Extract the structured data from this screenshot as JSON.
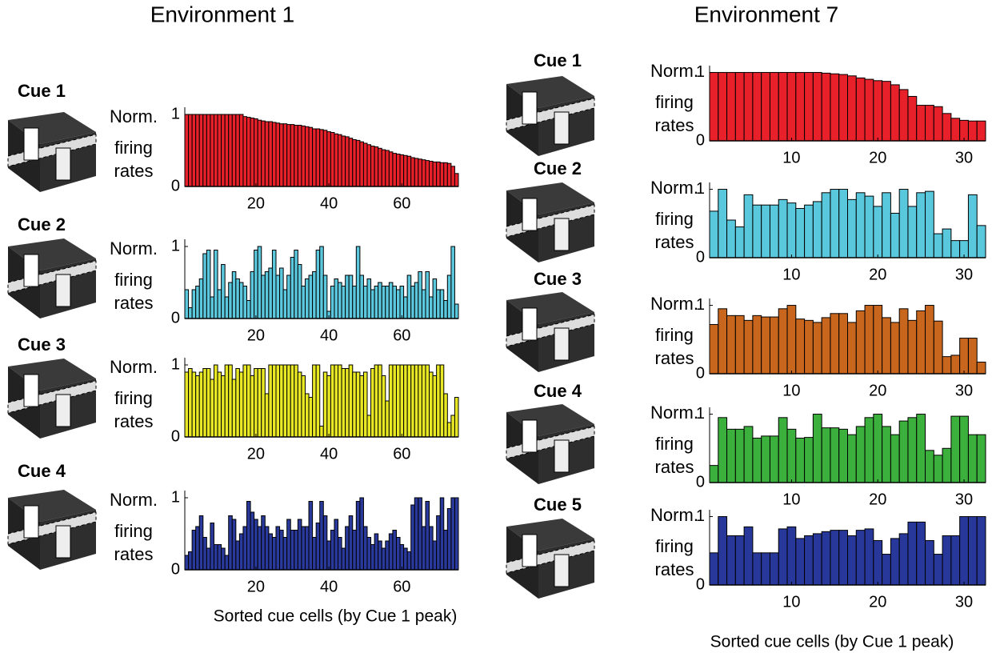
{
  "figure": {
    "environments": [
      {
        "title": "Environment 1",
        "xlabel": "Sorted cue cells (by Cue 1 peak)"
      },
      {
        "title": "Environment 7",
        "xlabel": "Sorted cue cells (by Cue 1 peak)"
      }
    ]
  },
  "chart_data": [
    {
      "type": "bar",
      "title": "Cue 1",
      "ylabel": [
        "Norm.",
        "firing",
        "rates"
      ],
      "color": "#e8202a",
      "x": [
        1,
        2,
        3,
        4,
        5,
        6,
        7,
        8,
        9,
        10,
        11,
        12,
        13,
        14,
        15,
        16,
        17,
        18,
        19,
        20,
        21,
        22,
        23,
        24,
        25,
        26,
        27,
        28,
        29,
        30,
        31,
        32,
        33,
        34,
        35,
        36,
        37,
        38,
        39,
        40,
        41,
        42,
        43,
        44,
        45,
        46,
        47,
        48,
        49,
        50,
        51,
        52,
        53,
        54,
        55,
        56,
        57,
        58,
        59,
        60,
        61,
        62,
        63,
        64,
        65,
        66,
        67,
        68,
        69,
        70,
        71,
        72,
        73,
        74,
        75
      ],
      "values": [
        1,
        1,
        1,
        1,
        1,
        1,
        1,
        1,
        1,
        1,
        1,
        1,
        1,
        1,
        1,
        1,
        0.97,
        0.96,
        0.95,
        0.94,
        0.92,
        0.91,
        0.9,
        0.9,
        0.89,
        0.88,
        0.87,
        0.87,
        0.86,
        0.86,
        0.85,
        0.85,
        0.84,
        0.83,
        0.82,
        0.8,
        0.8,
        0.79,
        0.78,
        0.76,
        0.75,
        0.73,
        0.72,
        0.7,
        0.69,
        0.67,
        0.65,
        0.64,
        0.62,
        0.6,
        0.58,
        0.56,
        0.55,
        0.53,
        0.51,
        0.5,
        0.48,
        0.46,
        0.45,
        0.44,
        0.43,
        0.42,
        0.4,
        0.39,
        0.38,
        0.37,
        0.36,
        0.35,
        0.34,
        0.34,
        0.33,
        0.33,
        0.32,
        0.28,
        0.18
      ],
      "xlim": [
        0.5,
        75.5
      ],
      "xticks": [
        20,
        40,
        60
      ],
      "ylim": [
        0,
        1.1
      ],
      "yticks": [
        0,
        1
      ]
    },
    {
      "type": "bar",
      "title": "Cue 2",
      "ylabel": [
        "Norm.",
        "firing",
        "rates"
      ],
      "color": "#5bc8de",
      "x": [
        1,
        2,
        3,
        4,
        5,
        6,
        7,
        8,
        9,
        10,
        11,
        12,
        13,
        14,
        15,
        16,
        17,
        18,
        19,
        20,
        21,
        22,
        23,
        24,
        25,
        26,
        27,
        28,
        29,
        30,
        31,
        32,
        33,
        34,
        35,
        36,
        37,
        38,
        39,
        40,
        41,
        42,
        43,
        44,
        45,
        46,
        47,
        48,
        49,
        50,
        51,
        52,
        53,
        54,
        55,
        56,
        57,
        58,
        59,
        60,
        61,
        62,
        63,
        64,
        65,
        66,
        67,
        68,
        69,
        70,
        71,
        72,
        73,
        74,
        75
      ],
      "values": [
        0.4,
        0.15,
        0.4,
        0.45,
        0.55,
        0.9,
        0.95,
        0.3,
        0.95,
        0.4,
        0.75,
        0.3,
        0.5,
        0.65,
        0.55,
        0.5,
        0.45,
        0.25,
        0.65,
        0.95,
        1.0,
        0.6,
        0.65,
        0.7,
        0.95,
        0.6,
        0.7,
        0.4,
        0.6,
        0.85,
        0.95,
        0.75,
        0.45,
        0.55,
        0.6,
        0.65,
        0.95,
        1.0,
        0.6,
        0.1,
        0.45,
        0.55,
        0.5,
        0.45,
        0.6,
        0.6,
        0.45,
        1.0,
        0.6,
        0.45,
        0.55,
        0.4,
        0.45,
        0.5,
        0.45,
        0.45,
        0.5,
        0.45,
        0.4,
        0.45,
        0.3,
        0.6,
        0.45,
        0.5,
        0.65,
        0.4,
        0.65,
        0.3,
        0.55,
        0.4,
        0.4,
        0.25,
        0.6,
        1.0,
        0.2
      ],
      "xlim": [
        0.5,
        75.5
      ],
      "xticks": [
        20,
        40,
        60
      ],
      "ylim": [
        0,
        1.1
      ],
      "yticks": [
        0,
        1
      ]
    },
    {
      "type": "bar",
      "title": "Cue 3",
      "ylabel": [
        "Norm.",
        "firing",
        "rates"
      ],
      "color": "#e8e824",
      "x": [
        1,
        2,
        3,
        4,
        5,
        6,
        7,
        8,
        9,
        10,
        11,
        12,
        13,
        14,
        15,
        16,
        17,
        18,
        19,
        20,
        21,
        22,
        23,
        24,
        25,
        26,
        27,
        28,
        29,
        30,
        31,
        32,
        33,
        34,
        35,
        36,
        37,
        38,
        39,
        40,
        41,
        42,
        43,
        44,
        45,
        46,
        47,
        48,
        49,
        50,
        51,
        52,
        53,
        54,
        55,
        56,
        57,
        58,
        59,
        60,
        61,
        62,
        63,
        64,
        65,
        66,
        67,
        68,
        69,
        70,
        71,
        72,
        73,
        74,
        75
      ],
      "values": [
        0.9,
        0.95,
        0.9,
        0.85,
        0.9,
        0.95,
        0.95,
        0.8,
        1.0,
        0.9,
        0.85,
        1.0,
        1.0,
        0.8,
        0.95,
        0.9,
        1.0,
        1.0,
        0.85,
        0.95,
        0.95,
        0.95,
        0.6,
        1.0,
        1.0,
        1.0,
        1.0,
        1.0,
        1.0,
        1.0,
        1.0,
        0.9,
        0.85,
        0.6,
        0.55,
        1.0,
        1.0,
        0.15,
        0.9,
        0.85,
        1.0,
        1.0,
        1.0,
        0.95,
        0.95,
        1.0,
        0.9,
        0.9,
        0.85,
        0.9,
        0.3,
        0.95,
        1.0,
        1.0,
        0.85,
        0.5,
        1.0,
        1.0,
        1.0,
        1.0,
        1.0,
        1.0,
        1.0,
        1.0,
        1.0,
        1.0,
        1.0,
        0.9,
        0.85,
        1.0,
        1.0,
        0.6,
        0.2,
        0.3,
        0.55
      ],
      "xlim": [
        0.5,
        75.5
      ],
      "xticks": [
        20,
        40,
        60
      ],
      "ylim": [
        0,
        1.1
      ],
      "yticks": [
        0,
        1
      ]
    },
    {
      "type": "bar",
      "title": "Cue 4",
      "ylabel": [
        "Norm.",
        "firing",
        "rates"
      ],
      "color": "#2a3a9c",
      "x": [
        1,
        2,
        3,
        4,
        5,
        6,
        7,
        8,
        9,
        10,
        11,
        12,
        13,
        14,
        15,
        16,
        17,
        18,
        19,
        20,
        21,
        22,
        23,
        24,
        25,
        26,
        27,
        28,
        29,
        30,
        31,
        32,
        33,
        34,
        35,
        36,
        37,
        38,
        39,
        40,
        41,
        42,
        43,
        44,
        45,
        46,
        47,
        48,
        49,
        50,
        51,
        52,
        53,
        54,
        55,
        56,
        57,
        58,
        59,
        60,
        61,
        62,
        63,
        64,
        65,
        66,
        67,
        68,
        69,
        70,
        71,
        72,
        73,
        74,
        75
      ],
      "values": [
        0.2,
        0.25,
        0.55,
        0.6,
        0.75,
        0.45,
        0.3,
        0.65,
        0.35,
        0.35,
        0.3,
        0.2,
        0.75,
        0.7,
        0.4,
        0.5,
        0.6,
        0.95,
        0.8,
        0.7,
        0.6,
        0.75,
        0.6,
        0.5,
        0.45,
        0.6,
        0.55,
        0.45,
        0.7,
        0.55,
        0.55,
        0.7,
        0.6,
        0.6,
        0.95,
        0.45,
        0.65,
        0.95,
        0.75,
        0.4,
        0.55,
        0.7,
        0.45,
        0.3,
        0.6,
        0.75,
        0.55,
        0.95,
        1.0,
        0.6,
        0.45,
        0.35,
        0.5,
        0.4,
        0.3,
        0.4,
        0.5,
        0.55,
        0.45,
        0.35,
        0.3,
        0.25,
        0.9,
        1.0,
        1.0,
        0.6,
        0.95,
        0.6,
        0.4,
        0.75,
        1.0,
        0.55,
        0.85,
        1.0,
        1.0
      ],
      "xlim": [
        0.5,
        75.5
      ],
      "xticks": [
        20,
        40,
        60
      ],
      "ylim": [
        0,
        1.1
      ],
      "yticks": [
        0,
        1
      ]
    },
    {
      "type": "bar",
      "title": "Cue 1",
      "ylabel": [
        "Norm.",
        "firing",
        "rates"
      ],
      "color": "#e8202a",
      "x": [
        1,
        2,
        3,
        4,
        5,
        6,
        7,
        8,
        9,
        10,
        11,
        12,
        13,
        14,
        15,
        16,
        17,
        18,
        19,
        20,
        21,
        22,
        23,
        24,
        25,
        26,
        27,
        28,
        29,
        30,
        31,
        32
      ],
      "values": [
        1,
        1,
        1,
        1,
        1,
        1,
        1,
        1,
        1,
        1,
        1,
        1,
        1,
        0.99,
        0.98,
        0.97,
        0.95,
        0.92,
        0.9,
        0.88,
        0.87,
        0.82,
        0.75,
        0.65,
        0.52,
        0.52,
        0.5,
        0.4,
        0.33,
        0.3,
        0.29,
        0.29
      ],
      "xlim": [
        0.5,
        32.5
      ],
      "xticks": [
        10,
        20,
        30
      ],
      "ylim": [
        0,
        1.1
      ],
      "yticks": [
        0,
        1
      ]
    },
    {
      "type": "bar",
      "title": "Cue 2",
      "ylabel": [
        "Norm.",
        "firing",
        "rates"
      ],
      "color": "#5ac8dc",
      "x": [
        1,
        2,
        3,
        4,
        5,
        6,
        7,
        8,
        9,
        10,
        11,
        12,
        13,
        14,
        15,
        16,
        17,
        18,
        19,
        20,
        21,
        22,
        23,
        24,
        25,
        26,
        27,
        28,
        29,
        30,
        31,
        32
      ],
      "values": [
        0.68,
        1.0,
        0.55,
        0.45,
        0.92,
        0.77,
        0.77,
        0.77,
        0.85,
        0.8,
        0.72,
        0.77,
        0.82,
        0.95,
        1.0,
        1.0,
        0.85,
        0.95,
        0.9,
        0.75,
        0.95,
        0.65,
        1.0,
        0.75,
        0.95,
        0.97,
        0.35,
        0.42,
        0.25,
        0.25,
        0.92,
        0.47
      ],
      "xlim": [
        0.5,
        32.5
      ],
      "xticks": [
        10,
        20,
        30
      ],
      "ylim": [
        0,
        1.1
      ],
      "yticks": [
        0,
        1
      ]
    },
    {
      "type": "bar",
      "title": "Cue 3",
      "ylabel": [
        "Norm.",
        "firing",
        "rates"
      ],
      "color": "#c8661e",
      "x": [
        1,
        2,
        3,
        4,
        5,
        6,
        7,
        8,
        9,
        10,
        11,
        12,
        13,
        14,
        15,
        16,
        17,
        18,
        19,
        20,
        21,
        22,
        23,
        24,
        25,
        26,
        27,
        28,
        29,
        30,
        31,
        32
      ],
      "values": [
        0.72,
        0.95,
        0.85,
        0.85,
        0.78,
        0.85,
        0.83,
        0.83,
        0.95,
        1.0,
        0.8,
        0.78,
        0.75,
        0.82,
        0.88,
        0.88,
        0.75,
        0.92,
        1.0,
        1.0,
        0.82,
        0.75,
        0.95,
        0.78,
        0.92,
        1.0,
        0.77,
        0.25,
        0.27,
        0.52,
        0.52,
        0.17
      ],
      "xlim": [
        0.5,
        32.5
      ],
      "xticks": [
        10,
        20,
        30
      ],
      "ylim": [
        0,
        1.1
      ],
      "yticks": [
        0,
        1
      ]
    },
    {
      "type": "bar",
      "title": "Cue 4",
      "ylabel": [
        "Norm.",
        "firing",
        "rates"
      ],
      "color": "#3cb03c",
      "x": [
        1,
        2,
        3,
        4,
        5,
        6,
        7,
        8,
        9,
        10,
        11,
        12,
        13,
        14,
        15,
        16,
        17,
        18,
        19,
        20,
        21,
        22,
        23,
        24,
        25,
        26,
        27,
        28,
        29,
        30,
        31,
        32
      ],
      "values": [
        0.25,
        0.95,
        0.78,
        0.78,
        0.82,
        0.65,
        0.68,
        0.68,
        0.95,
        0.78,
        0.65,
        0.66,
        1.0,
        0.8,
        0.8,
        0.78,
        0.7,
        0.82,
        0.95,
        1.0,
        0.82,
        0.7,
        0.9,
        0.95,
        1.0,
        0.47,
        0.4,
        0.5,
        0.97,
        0.97,
        0.7,
        0.7
      ],
      "xlim": [
        0.5,
        32.5
      ],
      "xticks": [
        10,
        20,
        30
      ],
      "ylim": [
        0,
        1.1
      ],
      "yticks": [
        0,
        1
      ]
    },
    {
      "type": "bar",
      "title": "Cue 5",
      "ylabel": [
        "Norm.",
        "firing",
        "rates"
      ],
      "color": "#28389a",
      "x": [
        1,
        2,
        3,
        4,
        5,
        6,
        7,
        8,
        9,
        10,
        11,
        12,
        13,
        14,
        15,
        16,
        17,
        18,
        19,
        20,
        21,
        22,
        23,
        24,
        25,
        26,
        27,
        28,
        29,
        30,
        31,
        32
      ],
      "values": [
        0.47,
        1.0,
        0.72,
        0.72,
        0.85,
        0.47,
        0.47,
        0.47,
        0.82,
        0.85,
        0.68,
        0.72,
        0.75,
        0.78,
        0.8,
        0.8,
        0.72,
        0.8,
        0.82,
        0.65,
        0.45,
        0.68,
        0.75,
        0.92,
        0.92,
        0.65,
        0.45,
        0.72,
        0.72,
        1.0,
        1.0,
        1.0
      ],
      "xlim": [
        0.5,
        32.5
      ],
      "xticks": [
        10,
        20,
        30
      ],
      "ylim": [
        0,
        1.1
      ],
      "yticks": [
        0,
        1
      ]
    }
  ]
}
